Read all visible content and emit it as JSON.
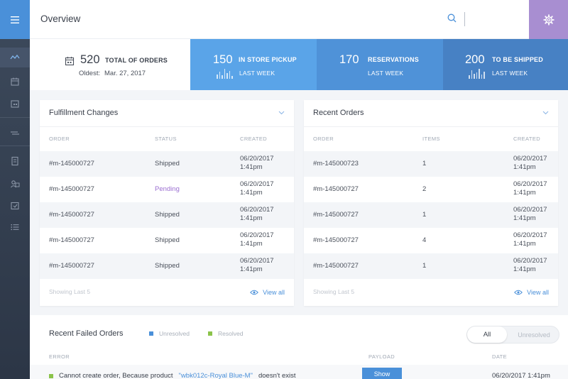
{
  "header": {
    "title": "Overview",
    "search_placeholder": ""
  },
  "sidebar": {
    "items": [
      "menu-icon",
      "activity-icon",
      "calendar-icon",
      "calendar-grid-icon",
      "transfer-icon",
      "document-icon",
      "users-icon",
      "checklist-icon",
      "list-icon"
    ]
  },
  "stats": {
    "total": {
      "value": "520",
      "label": "TOTAL OF ORDERS",
      "oldest_label": "Oldest:",
      "oldest_date": "Mar. 27, 2017"
    },
    "cards": [
      {
        "value": "150",
        "label": "IN STORE PICKUP",
        "sub": "LAST WEEK",
        "color": "#5aa4e8"
      },
      {
        "value": "170",
        "label": "RESERVATIONS",
        "sub": "LAST WEEK",
        "color": "#4f92d8"
      },
      {
        "value": "200",
        "label": "TO BE SHIPPED",
        "sub": "LAST WEEK",
        "color": "#4781c4"
      }
    ]
  },
  "fulfillment": {
    "title": "Fulfillment Changes",
    "columns": [
      "ORDER",
      "STATUS",
      "CREATED"
    ],
    "rows": [
      {
        "order": "#m-145000727",
        "status": "Shipped",
        "date": "06/20/2017",
        "time": "1:41pm"
      },
      {
        "order": "#m-145000727",
        "status": "Pending",
        "date": "06/20/2017",
        "time": "1:41pm"
      },
      {
        "order": "#m-145000727",
        "status": "Shipped",
        "date": "06/20/2017",
        "time": "1:41pm"
      },
      {
        "order": "#m-145000727",
        "status": "Shipped",
        "date": "06/20/2017",
        "time": "1:41pm"
      },
      {
        "order": "#m-145000727",
        "status": "Shipped",
        "date": "06/20/2017",
        "time": "1:41pm"
      }
    ],
    "footer_left": "Showing Last 5",
    "footer_right": "View all"
  },
  "recent": {
    "title": "Recent Orders",
    "columns": [
      "ORDER",
      "ITEMS",
      "CREATED"
    ],
    "rows": [
      {
        "order": "#m-145000723",
        "items": "1",
        "date": "06/20/2017",
        "time": "1:41pm"
      },
      {
        "order": "#m-145000727",
        "items": "2",
        "date": "06/20/2017",
        "time": "1:41pm"
      },
      {
        "order": "#m-145000727",
        "items": "1",
        "date": "06/20/2017",
        "time": "1:41pm"
      },
      {
        "order": "#m-145000727",
        "items": "4",
        "date": "06/20/2017",
        "time": "1:41pm"
      },
      {
        "order": "#m-145000727",
        "items": "1",
        "date": "06/20/2017",
        "time": "1:41pm"
      }
    ],
    "footer_left": "Showing Last 5",
    "footer_right": "View all"
  },
  "failed": {
    "title": "Recent Failed Orders",
    "legend_unresolved": "Unresolved",
    "legend_resolved": "Resolved",
    "toggle_all": "All",
    "toggle_unresolved": "Unresolved",
    "columns": [
      "ERROR",
      "PAYLOAD",
      "DATE"
    ],
    "row": {
      "error_prefix": "Cannot create order, Because product",
      "product": "\"wbk012c-Royal Blue-M\"",
      "error_suffix": "doesn't exist",
      "button": "Show",
      "date": "06/20/2017 1:41pm"
    }
  },
  "colors": {
    "accent": "#4a90d9",
    "settings": "#a88ed1",
    "pending": "#9b6fd1",
    "resolved": "#8bc34a",
    "sidebar": "#3d4a5c"
  }
}
